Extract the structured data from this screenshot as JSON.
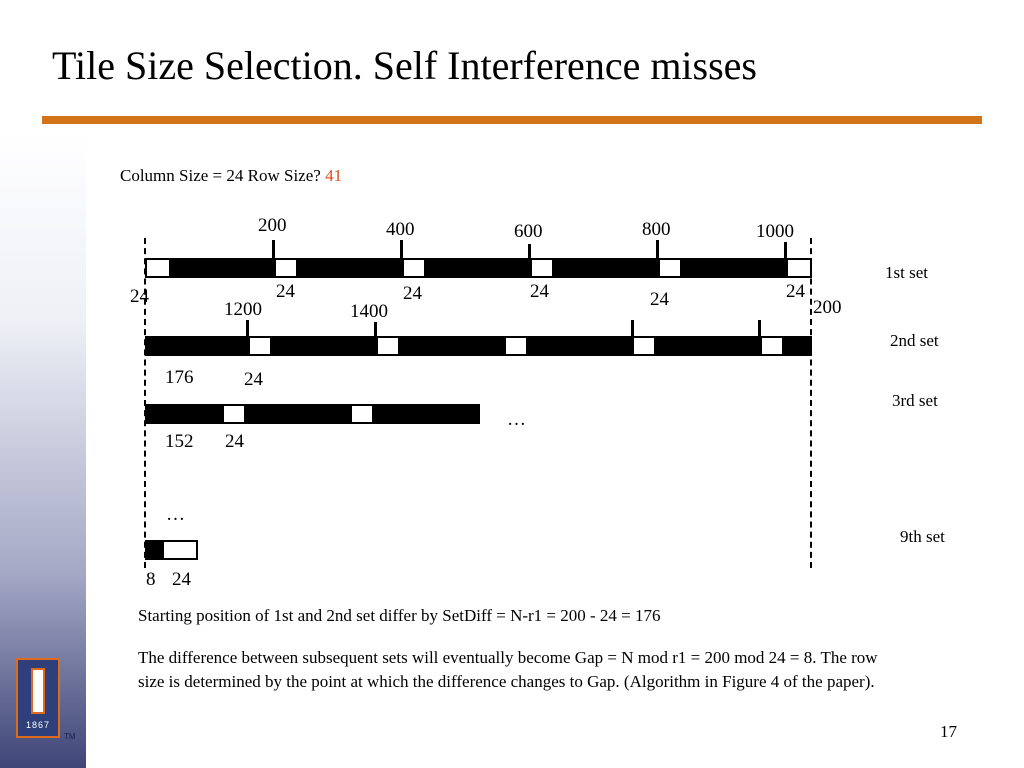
{
  "slide": {
    "title": "Tile Size Selection. Self  Interference misses",
    "subtitle_prefix": "Column Size = 24   Row Size? ",
    "subtitle_answer": "41",
    "page_number": "17",
    "logo_year": "1867",
    "logo_mark": "TM"
  },
  "diagram": {
    "top_labels": [
      "200",
      "400",
      "600",
      "800",
      "1000"
    ],
    "row1_cells": [
      "24",
      "24",
      "24",
      "24",
      "24",
      "24"
    ],
    "row2_top_labels": [
      "1200",
      "1400"
    ],
    "row2_end_label": "200",
    "row2_cell_labels": [
      "176",
      "24"
    ],
    "row3_cell_labels": [
      "152",
      "24"
    ],
    "ellipsis_right": "…",
    "ellipsis_below": "…",
    "row_last_labels": [
      "8",
      "24"
    ],
    "set_labels": [
      "1st  set",
      "2nd  set",
      "3rd  set",
      "9th  set"
    ]
  },
  "text": {
    "paragraph1": "Starting position of 1st and 2nd set differ by SetDiff = N-r1 = 200 - 24 = 176",
    "paragraph2": "The difference between subsequent sets will eventually become Gap = N mod r1 = 200 mod 24 = 8. The row size is determined by the point at which the difference changes to Gap. (Algorithm in Figure 4 of the paper)."
  }
}
